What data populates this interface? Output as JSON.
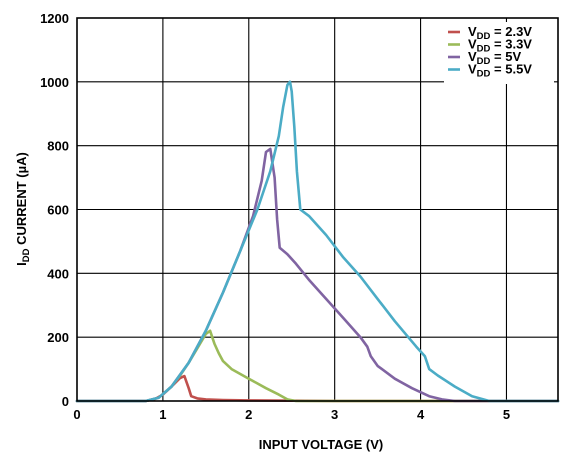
{
  "chart_data": {
    "type": "line",
    "xlabel": "INPUT VOLTAGE (V)",
    "ylabel_main": "I",
    "ylabel_sub": "DD",
    "ylabel_rest": " CURRENT (µA)",
    "xlim": [
      0,
      5.6
    ],
    "ylim": [
      0,
      1200
    ],
    "grid": true,
    "legend_position": "top-right",
    "x_ticks": [
      0,
      1,
      2,
      3,
      4,
      5
    ],
    "y_ticks": [
      0,
      200,
      400,
      600,
      800,
      1000,
      1200
    ],
    "series": [
      {
        "name": "V_DD = 2.3V",
        "legend_main": "V",
        "legend_sub": "DD",
        "legend_rest": " = 2.3V",
        "color": "#c0504d",
        "points": [
          [
            0,
            0
          ],
          [
            0.8,
            0
          ],
          [
            0.9,
            5
          ],
          [
            1.0,
            20
          ],
          [
            1.1,
            45
          ],
          [
            1.2,
            72
          ],
          [
            1.25,
            78
          ],
          [
            1.3,
            40
          ],
          [
            1.33,
            15
          ],
          [
            1.4,
            8
          ],
          [
            1.5,
            5
          ],
          [
            1.7,
            3
          ],
          [
            2.0,
            2
          ],
          [
            2.5,
            1
          ],
          [
            3.0,
            0
          ],
          [
            5.6,
            0
          ]
        ]
      },
      {
        "name": "V_DD = 3.3V",
        "legend_main": "V",
        "legend_sub": "DD",
        "legend_rest": " = 3.3V",
        "color": "#9bbb59",
        "points": [
          [
            0,
            0
          ],
          [
            0.8,
            0
          ],
          [
            0.95,
            10
          ],
          [
            1.1,
            45
          ],
          [
            1.2,
            80
          ],
          [
            1.3,
            120
          ],
          [
            1.4,
            165
          ],
          [
            1.5,
            210
          ],
          [
            1.55,
            220
          ],
          [
            1.6,
            180
          ],
          [
            1.65,
            150
          ],
          [
            1.7,
            125
          ],
          [
            1.8,
            100
          ],
          [
            2.0,
            70
          ],
          [
            2.2,
            40
          ],
          [
            2.35,
            20
          ],
          [
            2.45,
            5
          ],
          [
            2.55,
            0
          ],
          [
            5.6,
            0
          ]
        ]
      },
      {
        "name": "V_DD = 5V",
        "legend_main": "V",
        "legend_sub": "DD",
        "legend_rest": " = 5V",
        "color": "#8064a2",
        "points": [
          [
            0,
            0
          ],
          [
            0.8,
            0
          ],
          [
            0.95,
            10
          ],
          [
            1.1,
            45
          ],
          [
            1.3,
            120
          ],
          [
            1.5,
            220
          ],
          [
            1.7,
            340
          ],
          [
            1.9,
            470
          ],
          [
            2.05,
            580
          ],
          [
            2.15,
            690
          ],
          [
            2.2,
            780
          ],
          [
            2.25,
            790
          ],
          [
            2.3,
            700
          ],
          [
            2.33,
            570
          ],
          [
            2.36,
            480
          ],
          [
            2.45,
            460
          ],
          [
            2.55,
            430
          ],
          [
            2.7,
            380
          ],
          [
            2.9,
            320
          ],
          [
            3.1,
            260
          ],
          [
            3.3,
            200
          ],
          [
            3.38,
            170
          ],
          [
            3.42,
            140
          ],
          [
            3.5,
            110
          ],
          [
            3.7,
            70
          ],
          [
            3.9,
            40
          ],
          [
            4.1,
            15
          ],
          [
            4.25,
            5
          ],
          [
            4.4,
            0
          ],
          [
            5.6,
            0
          ]
        ]
      },
      {
        "name": "V_DD = 5.5V",
        "legend_main": "V",
        "legend_sub": "DD",
        "legend_rest": " = 5.5V",
        "color": "#4bacc6",
        "points": [
          [
            0,
            0
          ],
          [
            0.8,
            0
          ],
          [
            0.95,
            10
          ],
          [
            1.1,
            45
          ],
          [
            1.3,
            120
          ],
          [
            1.5,
            220
          ],
          [
            1.7,
            340
          ],
          [
            1.9,
            470
          ],
          [
            2.1,
            600
          ],
          [
            2.25,
            720
          ],
          [
            2.35,
            830
          ],
          [
            2.4,
            920
          ],
          [
            2.45,
            990
          ],
          [
            2.48,
            1000
          ],
          [
            2.5,
            970
          ],
          [
            2.53,
            860
          ],
          [
            2.56,
            720
          ],
          [
            2.6,
            600
          ],
          [
            2.7,
            580
          ],
          [
            2.9,
            520
          ],
          [
            3.1,
            450
          ],
          [
            3.3,
            390
          ],
          [
            3.5,
            320
          ],
          [
            3.7,
            250
          ],
          [
            3.95,
            170
          ],
          [
            4.05,
            140
          ],
          [
            4.1,
            100
          ],
          [
            4.2,
            80
          ],
          [
            4.4,
            45
          ],
          [
            4.6,
            15
          ],
          [
            4.8,
            0
          ],
          [
            5.6,
            0
          ]
        ]
      }
    ]
  }
}
